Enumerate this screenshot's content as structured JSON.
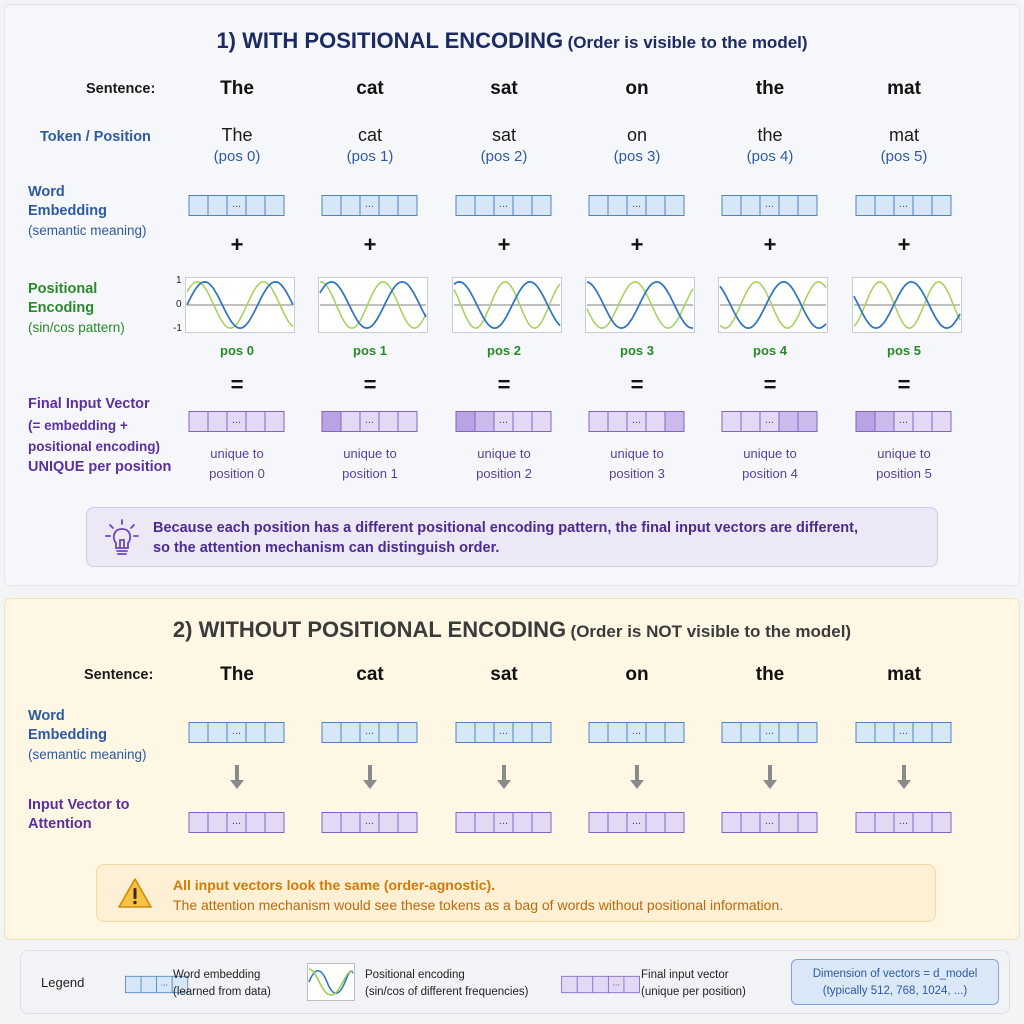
{
  "with_pe": {
    "title_main": "1) WITH POSITIONAL ENCODING",
    "title_sub": "(Order is visible to the model)",
    "sentence_label": "Sentence:",
    "token_position_label": "Token / Position",
    "word_embedding_label": [
      "Word",
      "Embedding"
    ],
    "word_embedding_sub": "(semantic meaning)",
    "positional_encoding_label": [
      "Positional",
      "Encoding"
    ],
    "positional_encoding_sub": "(sin/cos pattern)",
    "final_vector_label": [
      "Final Input Vector",
      "(= embedding +",
      "positional encoding)",
      "UNIQUE per position"
    ],
    "words": [
      "The",
      "cat",
      "sat",
      "on",
      "the",
      "mat"
    ],
    "positions": [
      "(pos 0)",
      "(pos 1)",
      "(pos 2)",
      "(pos 3)",
      "(pos 4)",
      "(pos 5)"
    ],
    "pos_labels": [
      "pos 0",
      "pos 1",
      "pos 2",
      "pos 3",
      "pos 4",
      "pos 5"
    ],
    "plus": "+",
    "equals": "=",
    "axis_ticks": [
      "1",
      "0",
      "-1"
    ],
    "dots": "...",
    "unique_line1": "unique to",
    "unique_line2": [
      "position 0",
      "position 1",
      "position 2",
      "position 3",
      "position 4",
      "position 5"
    ],
    "callout": [
      "Because each position has a different positional encoding pattern, the final input vectors are different,",
      "so the attention mechanism can distinguish order."
    ]
  },
  "without_pe": {
    "title_main": "2) WITHOUT POSITIONAL ENCODING",
    "title_sub": "(Order is NOT visible to the model)",
    "sentence_label": "Sentence:",
    "word_embedding_label": [
      "Word",
      "Embedding"
    ],
    "word_embedding_sub": "(semantic meaning)",
    "input_vector_label": [
      "Input Vector to",
      "Attention"
    ],
    "words": [
      "The",
      "cat",
      "sat",
      "on",
      "the",
      "mat"
    ],
    "callout": [
      "All input vectors look the same (order-agnostic).",
      "The attention mechanism would see these tokens as a bag of words without positional information."
    ]
  },
  "legend": {
    "title": "Legend",
    "word_embedding": [
      "Word embedding",
      "(learned from data)"
    ],
    "positional_encoding": [
      "Positional encoding",
      "(sin/cos of different frequencies)"
    ],
    "final_vector": [
      "Final input vector",
      "(unique per position)"
    ],
    "dimension": [
      "Dimension of vectors = d_model",
      "(typically 512, 768, 1024, ...)"
    ]
  },
  "colors": {
    "title_blue": "#1c2b66",
    "embedding_blue": "#d6e7f7",
    "encoding_green": "#2a8a2a",
    "final_purple": "#e3d9f5",
    "warning_orange": "#d07a0b"
  }
}
